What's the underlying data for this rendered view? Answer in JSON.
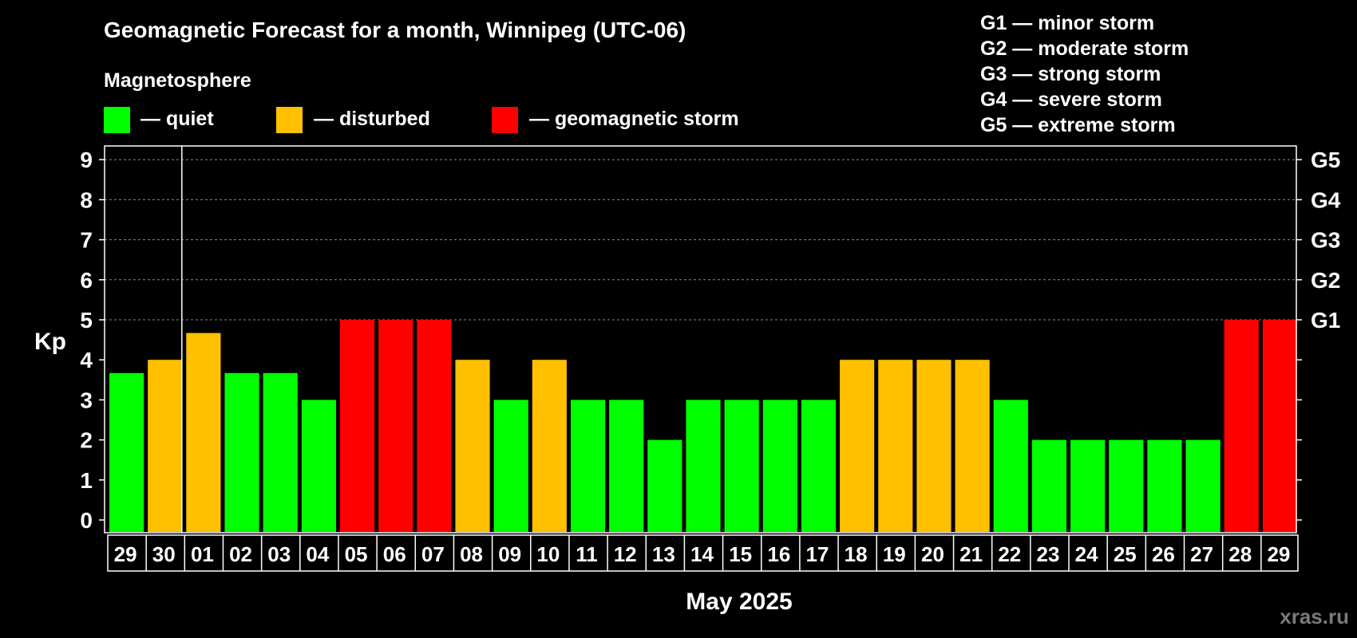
{
  "chart_data": {
    "type": "bar",
    "title": "Geomagnetic Forecast for a month, Winnipeg (UTC-06)",
    "legend_title": "Magnetosphere",
    "legend": [
      {
        "label": "— quiet",
        "color": "#00ff00"
      },
      {
        "label": "— disturbed",
        "color": "#ffc000"
      },
      {
        "label": "— geomagnetic storm",
        "color": "#ff0000"
      }
    ],
    "storm_scale": [
      "G1 — minor storm",
      "G2 — moderate storm",
      "G3 — strong storm",
      "G4 — severe storm",
      "G5 — extreme storm"
    ],
    "ylabel": "Kp",
    "xlabel": "May 2025",
    "ylim": [
      0,
      9
    ],
    "yticks": [
      "0",
      "1",
      "2",
      "3",
      "4",
      "5",
      "6",
      "7",
      "8",
      "9"
    ],
    "right_ticks": [
      {
        "kp": 5,
        "label": "G1"
      },
      {
        "kp": 6,
        "label": "G2"
      },
      {
        "kp": 7,
        "label": "G3"
      },
      {
        "kp": 8,
        "label": "G4"
      },
      {
        "kp": 9,
        "label": "G5"
      }
    ],
    "grid": "dashed at Kp 5-9",
    "month_divider_after_index": 1,
    "categories": [
      "29",
      "30",
      "01",
      "02",
      "03",
      "04",
      "05",
      "06",
      "07",
      "08",
      "09",
      "10",
      "11",
      "12",
      "13",
      "14",
      "15",
      "16",
      "17",
      "18",
      "19",
      "20",
      "21",
      "22",
      "23",
      "24",
      "25",
      "26",
      "27",
      "28",
      "29"
    ],
    "values": [
      3.67,
      4,
      4.67,
      3.67,
      3.67,
      3,
      5,
      5,
      5,
      4,
      3,
      4,
      3,
      3,
      2,
      3,
      3,
      3,
      3,
      4,
      4,
      4,
      4,
      3,
      2,
      2,
      2,
      2,
      2,
      5,
      5
    ],
    "levels": [
      "quiet",
      "disturbed",
      "disturbed",
      "quiet",
      "quiet",
      "quiet",
      "storm",
      "storm",
      "storm",
      "disturbed",
      "quiet",
      "disturbed",
      "quiet",
      "quiet",
      "quiet",
      "quiet",
      "quiet",
      "quiet",
      "quiet",
      "disturbed",
      "disturbed",
      "disturbed",
      "disturbed",
      "quiet",
      "quiet",
      "quiet",
      "quiet",
      "quiet",
      "quiet",
      "storm",
      "storm"
    ],
    "level_colors": {
      "quiet": "#00ff00",
      "disturbed": "#ffc000",
      "storm": "#ff0000"
    }
  },
  "watermark": "xras.ru"
}
